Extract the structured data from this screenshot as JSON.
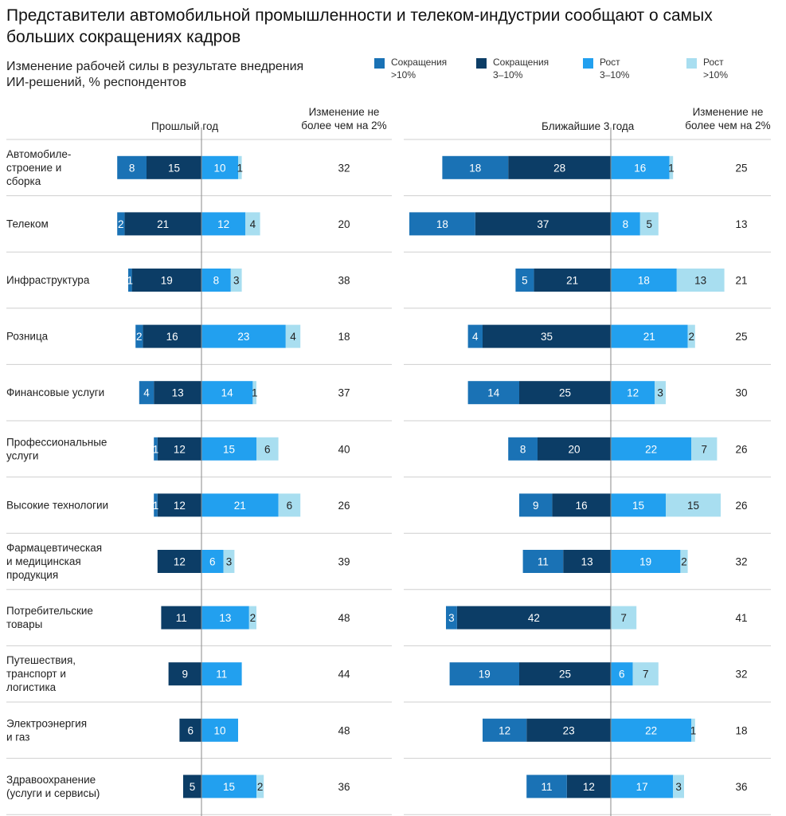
{
  "title": "Представители автомобильной промышленности и телеком-индустрии сообщают о самых больших сокращениях кадров",
  "subtitle": "Изменение рабочей силы в результате внедрения ИИ-решений, % респондентов",
  "legend": [
    {
      "line1": "Сокращения",
      "line2": ">10%",
      "color": "#1a72b5"
    },
    {
      "line1": "Сокращения",
      "line2": "3–10%",
      "color": "#0c3d66"
    },
    {
      "line1": "Рост",
      "line2": "3–10%",
      "color": "#22a0ef"
    },
    {
      "line1": "Рост",
      "line2": ">10%",
      "color": "#a8def0"
    }
  ],
  "panels": {
    "past": {
      "title": "Прошлый год",
      "stable_header_1": "Изменение не",
      "stable_header_2": "более чем на 2%"
    },
    "future": {
      "title": "Ближайшие 3 года",
      "stable_header_1": "Изменение не",
      "stable_header_2": "более чем на 2%"
    }
  },
  "chart_data": {
    "type": "bar",
    "orientation": "horizontal-diverging",
    "series_names": [
      "Сокращения >10%",
      "Сокращения 3–10%",
      "Рост 3–10%",
      "Рост >10%"
    ],
    "categories": [
      "Автомобиле-строение и сборка",
      "Телеком",
      "Инфраструктура",
      "Розница",
      "Финансовые услуги",
      "Профессиональные услуги",
      "Высокие технологии",
      "Фармацевтическая и медицинская продукция",
      "Потребительские товары",
      "Путешествия, транспорт и логистика",
      "Электроэнергия и газ",
      "Здравоохранение (услуги и сервисы)"
    ],
    "category_lines": [
      [
        "Автомобиле-",
        "строение и",
        "сборка"
      ],
      [
        "Телеком"
      ],
      [
        "Инфраструктура"
      ],
      [
        "Розница"
      ],
      [
        "Финансовые услуги"
      ],
      [
        "Профессиональные",
        "услуги"
      ],
      [
        "Высокие технологии"
      ],
      [
        "Фармацевтическая",
        "и медицинская",
        "продукция"
      ],
      [
        "Потребительские",
        "товары"
      ],
      [
        "Путешествия,",
        "транспорт и",
        "логистика"
      ],
      [
        "Электроэнергия",
        "и газ"
      ],
      [
        "Здравоохранение",
        "(услуги и сервисы)"
      ]
    ],
    "past_year": {
      "decrease_over_10": [
        8,
        2,
        1,
        2,
        4,
        1,
        1,
        0,
        0,
        0,
        0,
        0
      ],
      "decrease_3_10": [
        15,
        21,
        19,
        16,
        13,
        12,
        12,
        12,
        11,
        9,
        6,
        5
      ],
      "increase_3_10": [
        10,
        12,
        8,
        23,
        14,
        15,
        21,
        6,
        13,
        11,
        10,
        15
      ],
      "increase_over_10": [
        1,
        4,
        3,
        4,
        1,
        6,
        6,
        3,
        2,
        0,
        0,
        2
      ],
      "stable": [
        32,
        20,
        38,
        18,
        37,
        40,
        26,
        39,
        48,
        44,
        48,
        36
      ]
    },
    "next_3_years": {
      "decrease_over_10": [
        18,
        18,
        5,
        4,
        14,
        8,
        9,
        11,
        3,
        19,
        12,
        11
      ],
      "decrease_3_10": [
        28,
        37,
        21,
        35,
        25,
        20,
        16,
        13,
        42,
        25,
        23,
        12
      ],
      "increase_3_10": [
        16,
        8,
        18,
        21,
        12,
        22,
        15,
        19,
        0,
        6,
        22,
        17
      ],
      "increase_over_10": [
        1,
        5,
        13,
        2,
        3,
        7,
        15,
        2,
        7,
        7,
        1,
        3
      ],
      "stable": [
        25,
        13,
        21,
        25,
        30,
        26,
        26,
        32,
        41,
        32,
        18,
        36
      ]
    }
  }
}
